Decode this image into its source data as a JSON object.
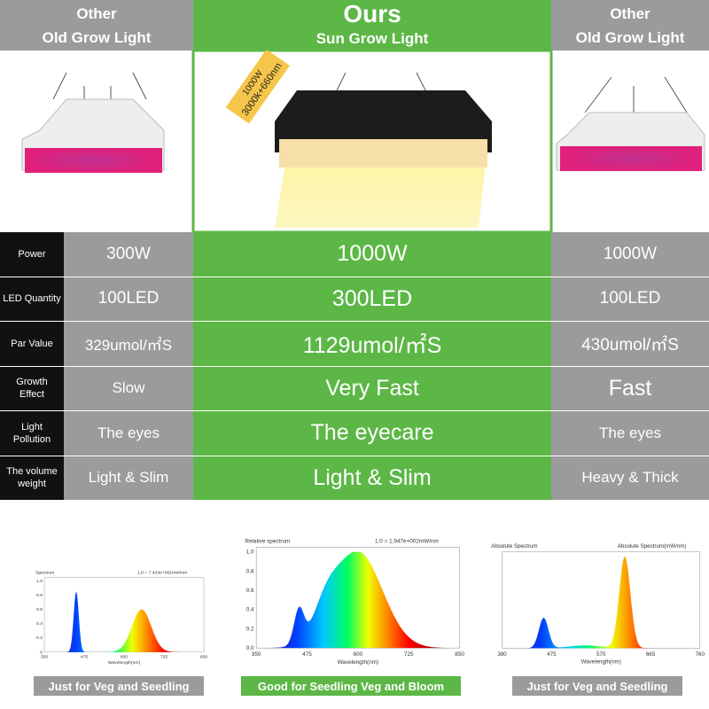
{
  "header": {
    "left": {
      "line1": "Other",
      "line2": "Old Grow Light"
    },
    "middle": {
      "line1": "Ours",
      "line2": "Sun Grow Light"
    },
    "right": {
      "line1": "Other",
      "line2": "Old Grow Light"
    }
  },
  "badge": {
    "line1": "1000W",
    "line2": "3000k+660nm"
  },
  "table": {
    "rows": [
      [
        "Power",
        "300W",
        "1000W",
        "1000W"
      ],
      [
        "LED Quantity",
        "100LED",
        "300LED",
        "100LED"
      ],
      [
        "Par Value",
        "329umol/㎡S",
        "1129umol/㎡S",
        "430umol/㎡S"
      ],
      [
        "Growth Effect",
        "Slow",
        "Very Fast",
        "Fast"
      ],
      [
        "Light Pollution",
        "The eyes",
        "The eyecare",
        "The eyes"
      ],
      [
        "The volume weight",
        "Light & Slim",
        "Light & Slim",
        "Heavy & Thick"
      ]
    ]
  },
  "spectra": [
    {
      "title": "Spectrum",
      "note": "1.0 = 7.423e+001mW/nm",
      "xlabel": "Wavelength(nm)",
      "yticks": [
        "0",
        "0.2",
        "0.4",
        "0.6",
        "0.8",
        "1.0"
      ],
      "xticks": [
        "350",
        "475",
        "600",
        "725",
        "850"
      ],
      "caption": "Just for Veg and Seedling"
    },
    {
      "title": "Relative spectrum",
      "note": "1.0 = 1.947e+002mW/nm",
      "xlabel": "Wavelength(nm)",
      "yticks": [
        "0.0",
        "0.2",
        "0.4",
        "0.6",
        "0.8",
        "1.0"
      ],
      "xticks": [
        "350",
        "475",
        "600",
        "725",
        "850"
      ],
      "caption": "Good for  Seedling Veg and Bloom"
    },
    {
      "title": "Absolute Spectrum",
      "note": "Absolute Spectrum(mW/nm)",
      "xlabel": "Wavelength(nm)",
      "yticks": [],
      "xticks": [
        "380",
        "475",
        "570",
        "665",
        "760"
      ],
      "caption": "Just for Veg and Seedling"
    }
  ]
}
